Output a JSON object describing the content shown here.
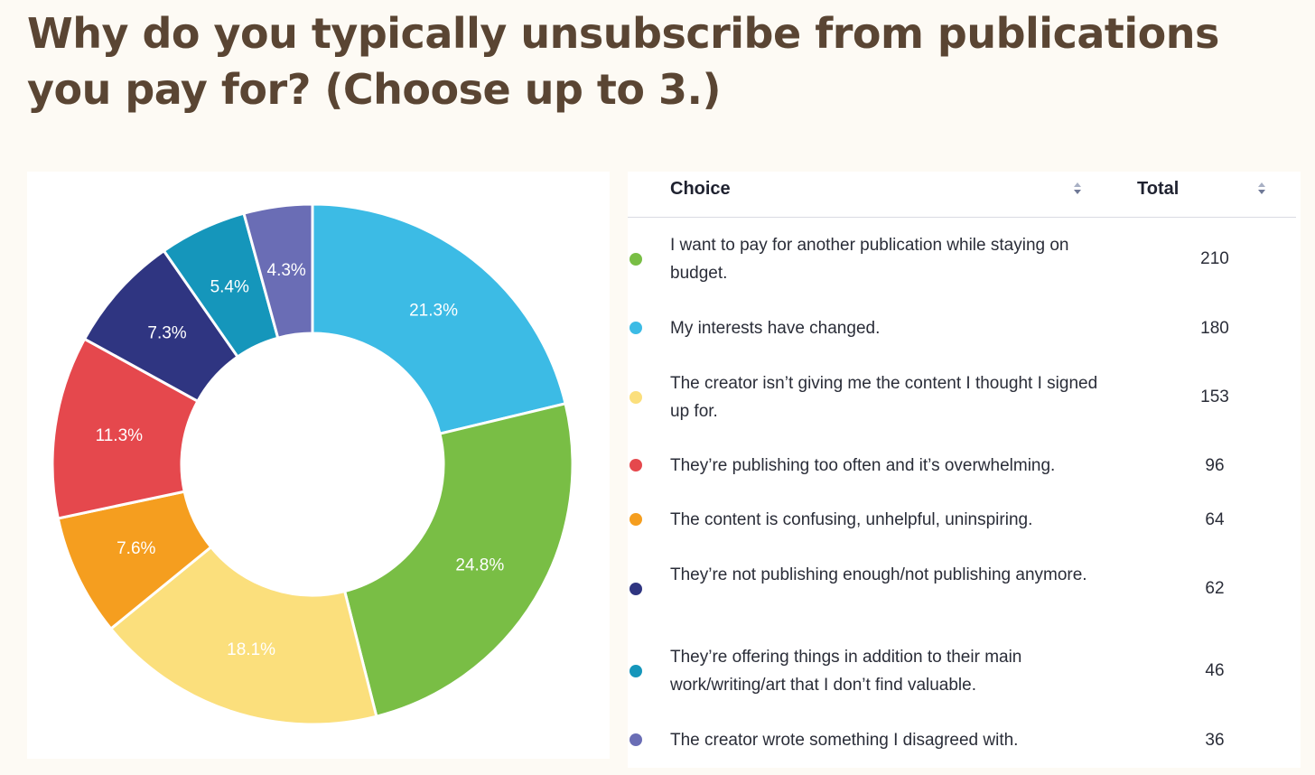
{
  "page": {
    "title": "Why do you typically unsubscribe from publications you pay for? (Choose up to 3.)"
  },
  "table": {
    "headers": {
      "choice": "Choice",
      "total": "Total"
    },
    "rows": [
      {
        "choice": "I want to pay for another publication while staying on budget.",
        "total": "210",
        "color": "#79be45"
      },
      {
        "choice": "My interests have changed.",
        "total": "180",
        "color": "#3cbbe5"
      },
      {
        "choice": "The creator isn’t giving me the content I thought I signed up for.",
        "total": "153",
        "color": "#fbdf7c"
      },
      {
        "choice": "They’re publishing too often and it’s overwhelming.",
        "total": "96",
        "color": "#e5484d"
      },
      {
        "choice": "The content is confusing, unhelpful, uninspiring.",
        "total": "64",
        "color": "#f59e1f"
      },
      {
        "choice": "They’re not publishing enough/not publishing anymore.",
        "total": "62",
        "color": "#2f3581"
      },
      {
        "choice": "They’re offering things in addition to their main work/writing/art that I don’t find valuable.",
        "total": "46",
        "color": "#1596bb"
      },
      {
        "choice": "The creator wrote something I disagreed with.",
        "total": "36",
        "color": "#6a6db5"
      }
    ]
  },
  "chart_data": {
    "type": "pie",
    "donut": true,
    "start": "top",
    "direction": "clockwise",
    "slice_order": [
      1,
      0,
      2,
      4,
      3,
      5,
      6,
      7
    ],
    "categories": [
      "I want to pay for another publication while staying on budget.",
      "My interests have changed.",
      "The creator isn’t giving me the content I thought I signed up for.",
      "They’re publishing too often and it’s overwhelming.",
      "The content is confusing, unhelpful, uninspiring.",
      "They’re not publishing enough/not publishing anymore.",
      "They’re offering things in addition to their main work/writing/art that I don’t find valuable.",
      "The creator wrote something I disagreed with."
    ],
    "values": [
      210,
      180,
      153,
      96,
      64,
      62,
      46,
      36
    ],
    "percent_labels": [
      "24.8%",
      "21.3%",
      "18.1%",
      "11.3%",
      "7.6%",
      "7.3%",
      "5.4%",
      "4.3%"
    ],
    "colors": [
      "#79be45",
      "#3cbbe5",
      "#fbdf7c",
      "#e5484d",
      "#f59e1f",
      "#2f3581",
      "#1596bb",
      "#6a6db5"
    ],
    "legend": "table-right"
  }
}
